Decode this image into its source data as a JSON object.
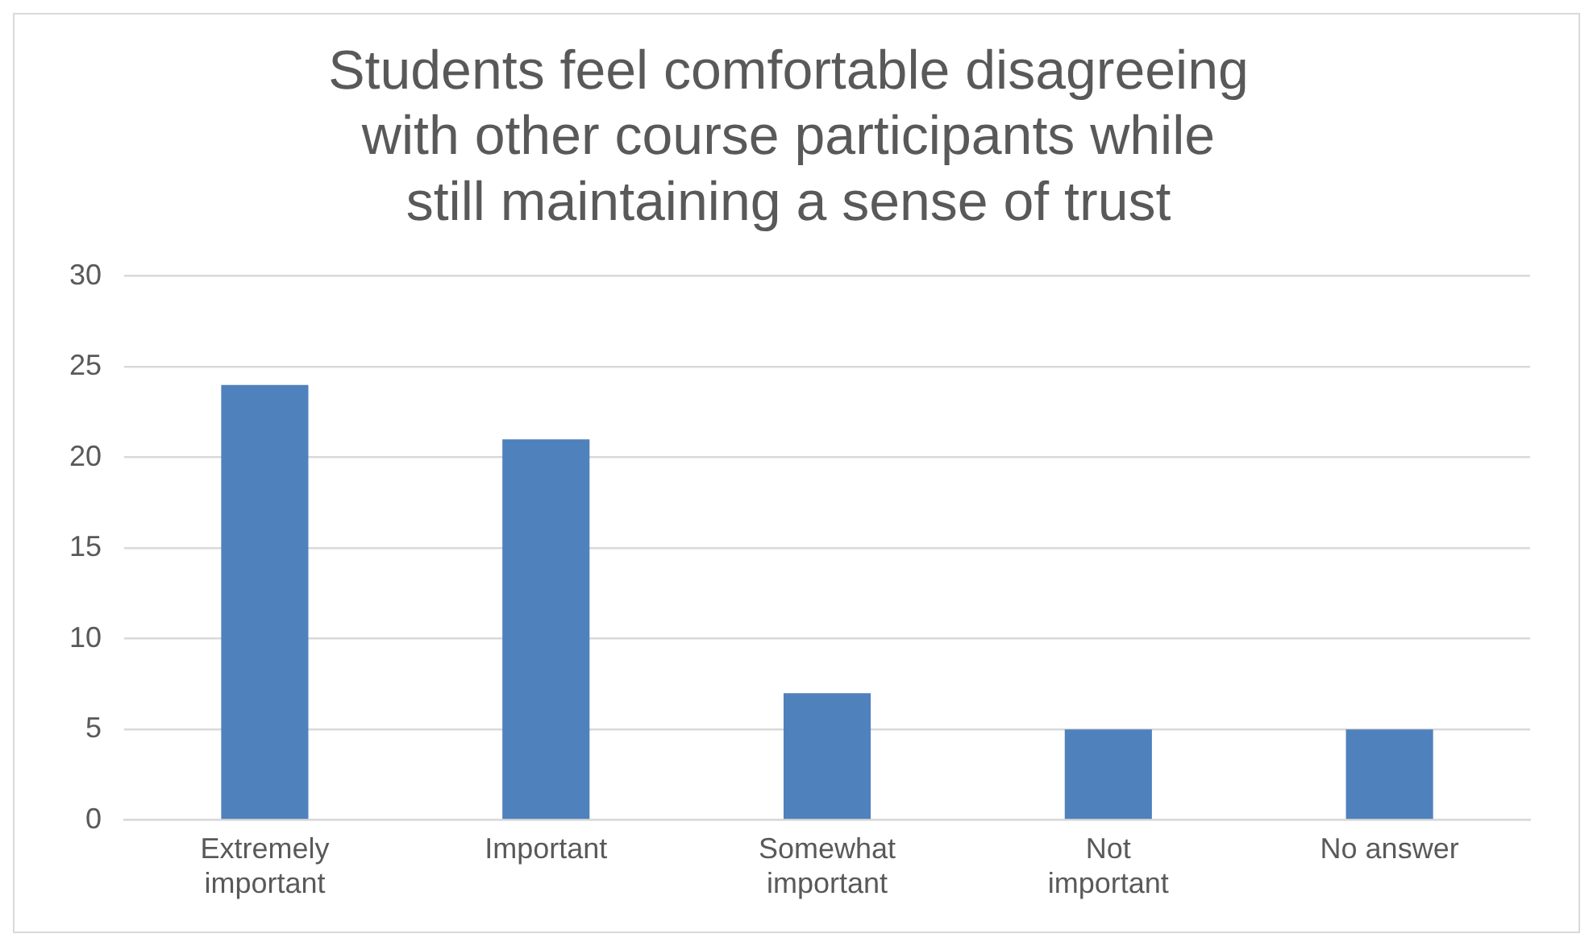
{
  "chart_data": {
    "type": "bar",
    "title": "Students feel comfortable disagreeing with other course participants while still maintaining a sense of trust",
    "categories": [
      "Extremely important",
      "Important",
      "Somewhat important",
      "Not important",
      "No answer"
    ],
    "values": [
      24,
      21,
      7,
      5,
      5
    ],
    "color": "#4f81bd",
    "ylim": [
      0,
      30
    ],
    "yticks": [
      0,
      5,
      10,
      15,
      20,
      25,
      30
    ],
    "grid": "y",
    "legend": false
  }
}
